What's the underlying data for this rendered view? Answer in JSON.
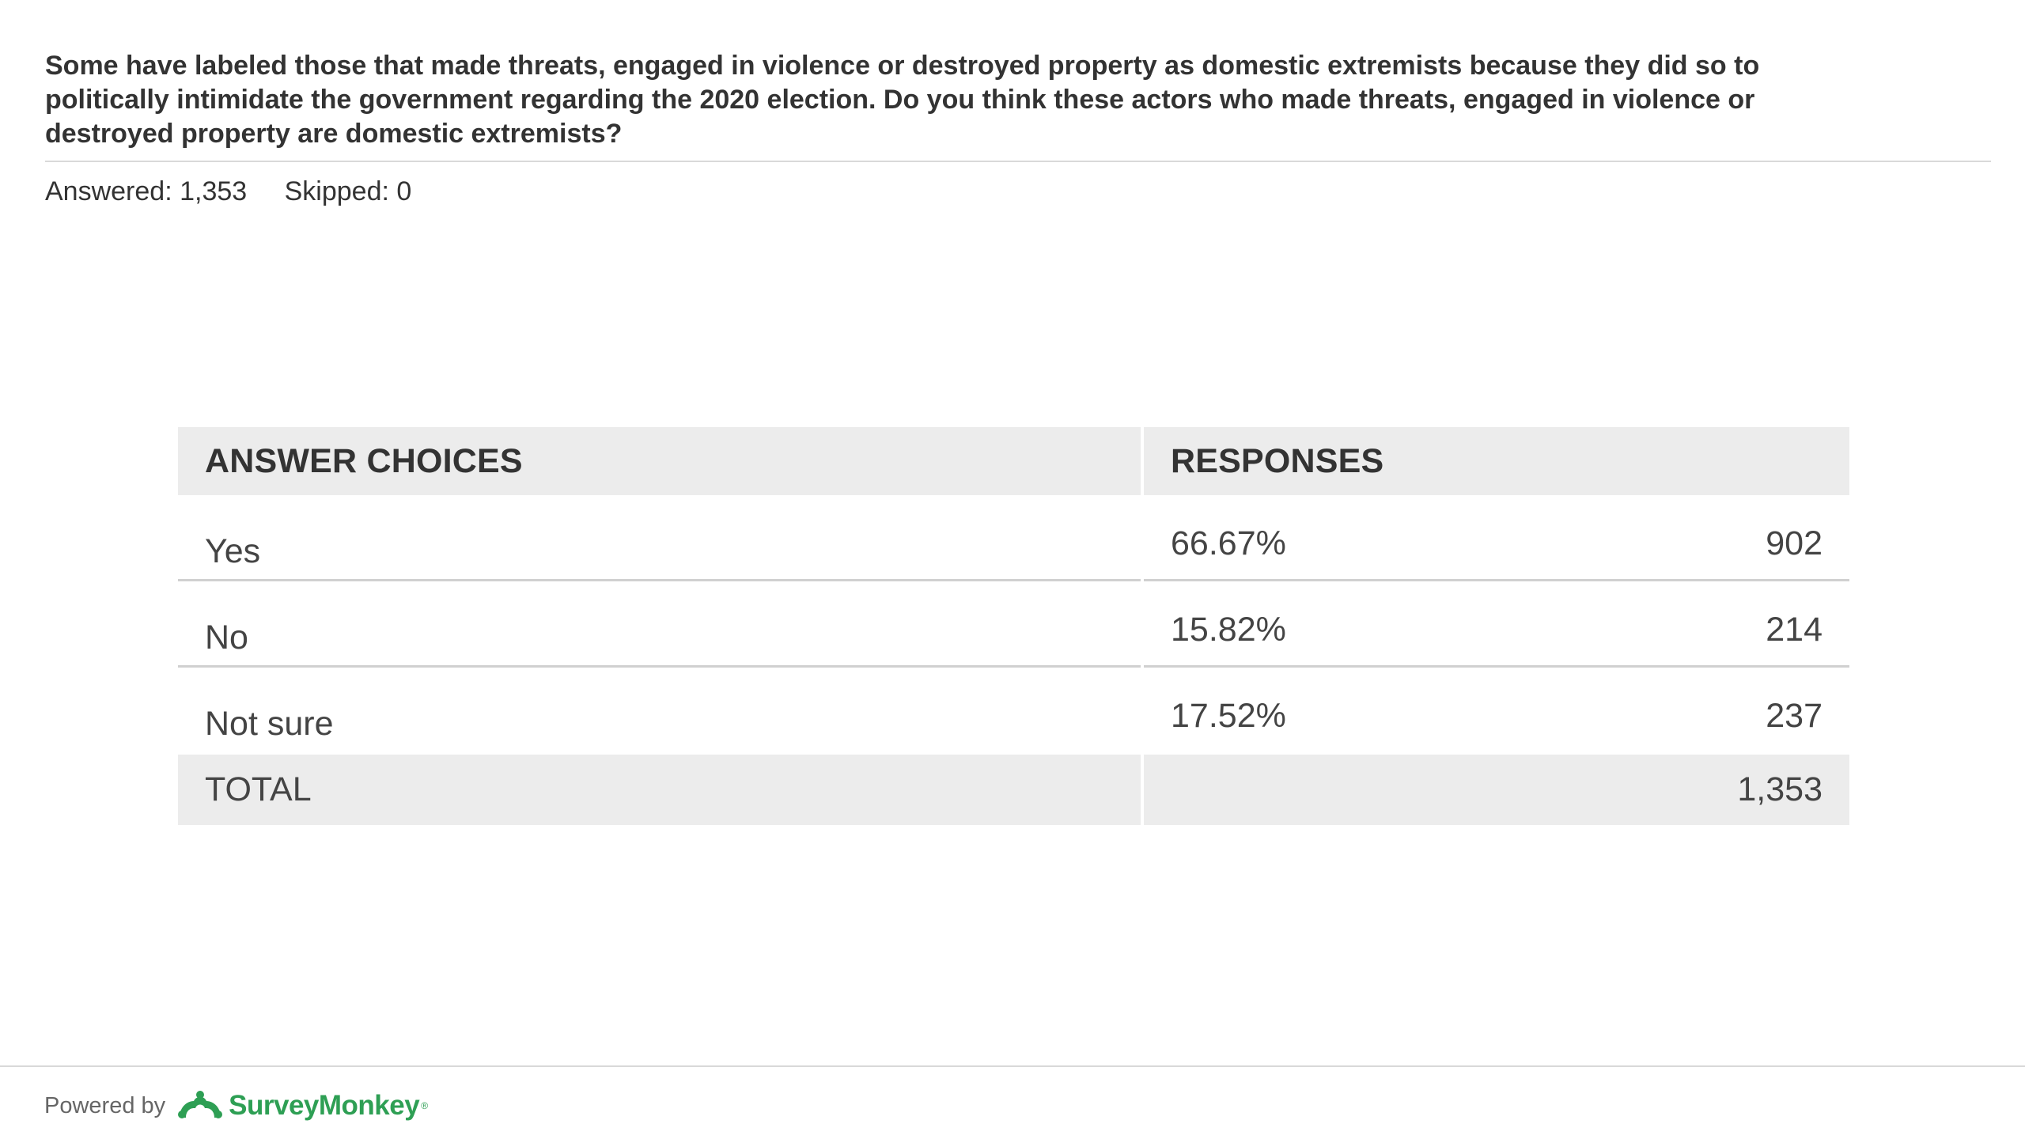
{
  "question": {
    "text": "Some have labeled those that made threats, engaged in violence or destroyed property as domestic extremists because they did so to politically intimidate the government regarding the 2020 election. Do you think these actors who made threats, engaged in violence or destroyed property are domestic extremists?"
  },
  "stats": {
    "answered": "Answered: 1,353",
    "skipped": "Skipped: 0"
  },
  "table": {
    "col_choices": "ANSWER CHOICES",
    "col_responses": "RESPONSES",
    "rows": [
      {
        "choice": "Yes",
        "percent": "66.67%",
        "count": "902"
      },
      {
        "choice": "No",
        "percent": "15.82%",
        "count": "214"
      },
      {
        "choice": "Not sure",
        "percent": "17.52%",
        "count": "237"
      }
    ],
    "total_label": "TOTAL",
    "total_count": "1,353"
  },
  "chart_data": {
    "type": "table",
    "columns": [
      "ANSWER CHOICES",
      "RESPONSES"
    ],
    "rows": [
      {
        "choice": "Yes",
        "percent": 66.67,
        "count": 902
      },
      {
        "choice": "No",
        "percent": 15.82,
        "count": 214
      },
      {
        "choice": "Not sure",
        "percent": 17.52,
        "count": 237
      }
    ],
    "total": 1353,
    "answered": 1353,
    "skipped": 0
  },
  "footer": {
    "powered_by": "Powered by",
    "brand": "SurveyMonkey",
    "brand_mark": "®",
    "logo_icon": "surveymonkey-logo-icon",
    "brand_color": "#2e9f54"
  }
}
